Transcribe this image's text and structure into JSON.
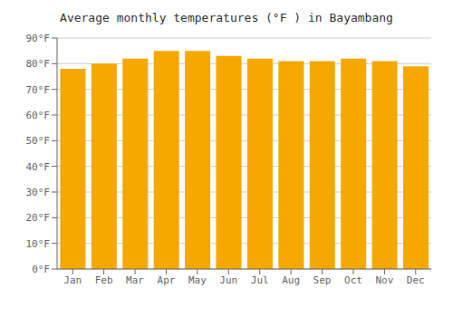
{
  "chart_data": {
    "type": "bar",
    "title": "Average monthly temperatures (°F ) in Bayambang",
    "categories": [
      "Jan",
      "Feb",
      "Mar",
      "Apr",
      "May",
      "Jun",
      "Jul",
      "Aug",
      "Sep",
      "Oct",
      "Nov",
      "Dec"
    ],
    "values": [
      78,
      80,
      82,
      85,
      85,
      83,
      82,
      81,
      81,
      82,
      81,
      79
    ],
    "color": "#F5A800",
    "ylim": [
      0,
      90
    ],
    "yticks": [
      {
        "value": 0,
        "label": "0°F"
      },
      {
        "value": 10,
        "label": "10°F"
      },
      {
        "value": 20,
        "label": "20°F"
      },
      {
        "value": 30,
        "label": "30°F"
      },
      {
        "value": 40,
        "label": "40°F"
      },
      {
        "value": 50,
        "label": "50°F"
      },
      {
        "value": 60,
        "label": "60°F"
      },
      {
        "value": 70,
        "label": "70°F"
      },
      {
        "value": 80,
        "label": "80°F"
      },
      {
        "value": 90,
        "label": "90°F"
      }
    ],
    "grid": true
  }
}
